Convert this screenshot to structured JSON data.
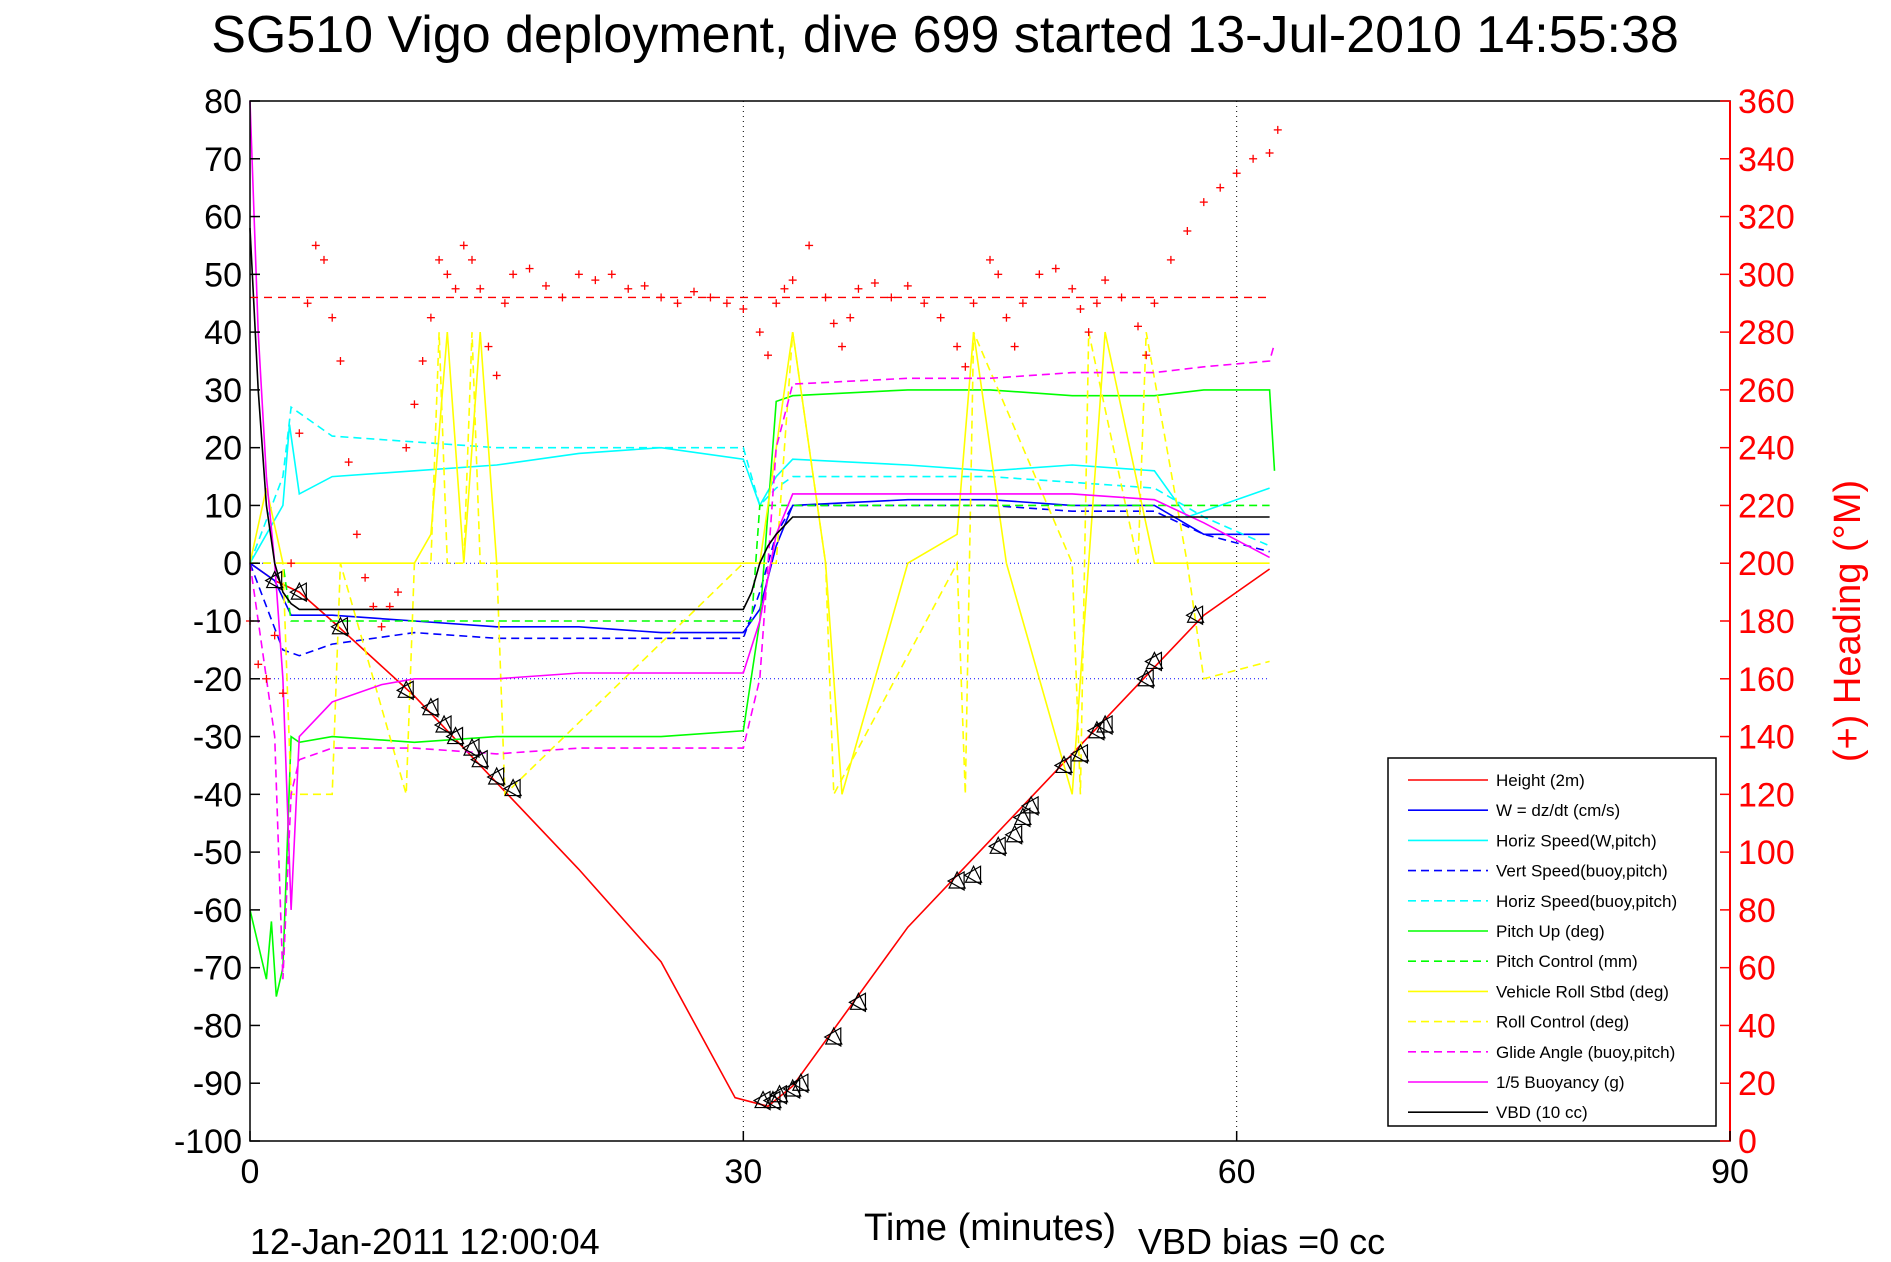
{
  "chart_data": {
    "type": "line",
    "title": "SG510 Vigo deployment, dive 699 started 13-Jul-2010 14:55:38",
    "xlabel": "Time (minutes)",
    "ylabel": "",
    "y2label": "(+) Heading (°M)",
    "xlim": [
      0,
      90
    ],
    "ylim": [
      -100,
      80
    ],
    "y2lim": [
      0,
      360
    ],
    "xticks": [
      "0",
      "30",
      "60",
      "90"
    ],
    "yticks": [
      "80",
      "70",
      "60",
      "50",
      "40",
      "30",
      "20",
      "10",
      "0",
      "-10",
      "-20",
      "-30",
      "-40",
      "-50",
      "-60",
      "-70",
      "-80",
      "-90",
      "-100"
    ],
    "y2ticks": [
      "360",
      "340",
      "320",
      "300",
      "280",
      "260",
      "240",
      "220",
      "200",
      "180",
      "160",
      "140",
      "120",
      "100",
      "80",
      "60",
      "40",
      "20",
      "0"
    ],
    "grid": true,
    "legend_position": "bottom-right",
    "footer_left": "12-Jan-2011 12:00:04",
    "footer_right": "VBD bias =0 cc",
    "colors": {
      "height": "#ff0000",
      "w": "#0000ff",
      "horiz_w": "#00ffff",
      "vert_buoy": "#0000ff",
      "horiz_buoy": "#00ffff",
      "pitch_up": "#00ff00",
      "pitch_control": "#00ff00",
      "roll": "#ffff00",
      "roll_control": "#ffff00",
      "glide": "#ff00ff",
      "buoyancy": "#ff00ff",
      "vbd": "#000000",
      "heading": "#ff0000"
    },
    "series": [
      {
        "name": "Height (2m)",
        "key": "height",
        "style": "solid",
        "x": [
          0,
          1.5,
          3,
          5,
          10,
          15,
          20,
          25,
          29.5,
          31.5,
          33,
          40,
          45,
          50,
          55,
          58,
          62
        ],
        "y": [
          0,
          -3,
          -5,
          -10,
          -23,
          -38,
          -53,
          -69,
          -92.5,
          -94,
          -90.5,
          -63,
          -48,
          -33,
          -18,
          -9,
          -1
        ]
      },
      {
        "name": "W = dz/dt (cm/s)",
        "key": "w",
        "style": "solid",
        "x": [
          0,
          1.5,
          2.5,
          5,
          10,
          15,
          20,
          25,
          30,
          31,
          32,
          33,
          40,
          45,
          50,
          55,
          58,
          62
        ],
        "y": [
          0,
          -3,
          -9,
          -9,
          -10,
          -11,
          -11,
          -12,
          -12,
          -8,
          3,
          10,
          11,
          11,
          10,
          10,
          5,
          5
        ]
      },
      {
        "name": "Horiz Speed(W,pitch)",
        "key": "horiz_w",
        "style": "solid",
        "x": [
          0,
          2,
          2.4,
          3,
          5,
          10,
          15,
          20,
          25,
          30,
          31,
          32,
          33,
          40,
          45,
          50,
          55,
          57,
          62
        ],
        "y": [
          0,
          10,
          24,
          12,
          15,
          16,
          17,
          19,
          20,
          18,
          10,
          15,
          18,
          17,
          16,
          17,
          16,
          8,
          13
        ]
      },
      {
        "name": "Vert Speed(buoy,pitch)",
        "key": "vert_buoy",
        "style": "dashed",
        "x": [
          0,
          2,
          3,
          5,
          10,
          15,
          20,
          25,
          30,
          31,
          32,
          33,
          40,
          45,
          50,
          55,
          58,
          62
        ],
        "y": [
          0,
          -15,
          -16,
          -14,
          -12,
          -13,
          -13,
          -13,
          -13,
          -5,
          5,
          10,
          10,
          10,
          9,
          9,
          5,
          2
        ]
      },
      {
        "name": "Horiz Speed(buoy,pitch)",
        "key": "horiz_buoy",
        "style": "dashed",
        "x": [
          0,
          2,
          2.5,
          5,
          10,
          15,
          20,
          25,
          30,
          31,
          32,
          33,
          40,
          45,
          50,
          55,
          58,
          62
        ],
        "y": [
          0,
          15,
          27,
          22,
          21,
          20,
          20,
          20,
          20,
          10,
          13,
          15,
          15,
          15,
          14,
          13,
          8,
          3
        ]
      },
      {
        "name": "Pitch Up (deg)",
        "key": "pitch_up",
        "style": "solid",
        "x": [
          0,
          1,
          1.3,
          1.6,
          2,
          2.5,
          3,
          5,
          10,
          15,
          20,
          25,
          30,
          31,
          32,
          33,
          40,
          45,
          50,
          55,
          58,
          62,
          62.3
        ],
        "y": [
          -60,
          -72,
          -62,
          -75,
          -70,
          -30,
          -31,
          -30,
          -31,
          -30,
          -30,
          -30,
          -29,
          -10,
          28,
          29,
          30,
          30,
          29,
          29,
          30,
          30,
          16
        ]
      },
      {
        "name": "Pitch Control (mm)",
        "key": "pitch_control",
        "style": "dashed",
        "x": [
          0,
          2,
          2.5,
          30,
          30.5,
          31,
          62
        ],
        "y": [
          0,
          0,
          -10,
          -10,
          -10,
          10,
          10
        ]
      },
      {
        "name": "Vehicle Roll Stbd (deg)",
        "key": "roll",
        "style": "solid",
        "x": [
          0,
          1,
          2,
          3,
          10,
          11,
          12,
          13,
          14,
          15,
          16,
          30,
          31,
          33,
          35,
          36,
          40,
          43,
          44,
          46,
          50,
          52,
          55,
          58,
          60,
          62
        ],
        "y": [
          0,
          13,
          0,
          0,
          0,
          5,
          40,
          0,
          40,
          0,
          0,
          0,
          0,
          40,
          0,
          -40,
          0,
          5,
          40,
          0,
          -40,
          40,
          0,
          0,
          0,
          0
        ]
      },
      {
        "name": "Roll Control (deg)",
        "key": "roll_control",
        "style": "dashed",
        "x": [
          0,
          2,
          2.5,
          5,
          5.5,
          9.5,
          10,
          11,
          11.5,
          12,
          13,
          13.5,
          14,
          15,
          15.5,
          30,
          32,
          33,
          35,
          35.5,
          43,
          43.5,
          44,
          50,
          50.5,
          51,
          54,
          54.5,
          57,
          58,
          62
        ],
        "y": [
          0,
          0,
          -40,
          -40,
          0,
          -40,
          0,
          0,
          40,
          0,
          0,
          40,
          0,
          0,
          -40,
          0,
          0,
          40,
          0,
          -40,
          0,
          -40,
          40,
          0,
          -40,
          40,
          0,
          40,
          0,
          -20,
          -17
        ]
      },
      {
        "name": "Glide Angle (buoy,pitch)",
        "key": "glide",
        "style": "dashed",
        "x": [
          0,
          1.5,
          2,
          2.5,
          3,
          5,
          10,
          15,
          20,
          25,
          30,
          31,
          32,
          33,
          40,
          45,
          50,
          55,
          58,
          62,
          62.3
        ],
        "y": [
          0,
          -30,
          -72,
          -40,
          -34,
          -32,
          -32,
          -33,
          -32,
          -32,
          -32,
          -20,
          20,
          31,
          32,
          32,
          33,
          33,
          34,
          35,
          38
        ]
      },
      {
        "name": "1/5 Buoyancy (g)",
        "key": "buoyancy",
        "style": "solid",
        "x": [
          0,
          0.5,
          1,
          1.5,
          2,
          2.5,
          3,
          5,
          8,
          10,
          12,
          15,
          20,
          25,
          30,
          31,
          32,
          33,
          40,
          45,
          50,
          55,
          58,
          62
        ],
        "y": [
          80,
          40,
          15,
          0,
          -20,
          -60,
          -30,
          -24,
          -21,
          -20,
          -20,
          -20,
          -19,
          -19,
          -19,
          -10,
          5,
          12,
          12,
          12,
          12,
          11,
          7,
          1
        ]
      },
      {
        "name": "VBD (10 cc)",
        "key": "vbd",
        "style": "solid",
        "x": [
          0,
          0.5,
          1,
          1.5,
          2,
          2.5,
          3,
          5,
          10,
          15,
          20,
          25,
          30,
          30.5,
          31,
          31.5,
          32,
          33,
          40,
          45,
          50,
          55,
          58,
          62
        ],
        "y": [
          58,
          30,
          10,
          0,
          -5,
          -7,
          -8,
          -8,
          -8,
          -8,
          -8,
          -8,
          -8,
          -5,
          0,
          3,
          5,
          8,
          8,
          8,
          8,
          8,
          8,
          8
        ]
      }
    ],
    "heading": {
      "name": "(+) Heading",
      "target_deg": 292,
      "x": [
        0,
        0.5,
        1,
        1.5,
        2,
        2.5,
        3,
        3.5,
        4,
        4.5,
        5,
        5.5,
        6,
        6.5,
        7,
        7.5,
        8,
        8.5,
        9,
        9.5,
        10,
        10.5,
        11,
        11.5,
        12,
        12.5,
        13,
        13.5,
        14,
        14.5,
        15,
        15.5,
        16,
        17,
        18,
        19,
        20,
        21,
        22,
        23,
        24,
        25,
        26,
        27,
        28,
        29,
        30,
        31,
        31.5,
        32,
        32.5,
        33,
        34,
        35,
        35.5,
        36,
        36.5,
        37,
        38,
        39,
        40,
        41,
        42,
        43,
        43.5,
        44,
        45,
        45.5,
        46,
        46.5,
        47,
        48,
        49,
        50,
        50.5,
        51,
        51.5,
        52,
        53,
        54,
        54.5,
        55,
        56,
        57,
        58,
        59,
        60,
        61,
        62,
        62.5
      ],
      "y": [
        180,
        165,
        160,
        175,
        155,
        200,
        245,
        290,
        310,
        305,
        285,
        270,
        235,
        210,
        195,
        185,
        178,
        185,
        190,
        240,
        255,
        270,
        285,
        305,
        300,
        295,
        310,
        305,
        295,
        275,
        265,
        290,
        300,
        302,
        296,
        292,
        300,
        298,
        300,
        295,
        296,
        292,
        290,
        294,
        292,
        290,
        288,
        280,
        272,
        290,
        295,
        298,
        310,
        292,
        283,
        275,
        285,
        295,
        297,
        292,
        296,
        290,
        285,
        275,
        268,
        290,
        305,
        300,
        285,
        275,
        290,
        300,
        302,
        295,
        288,
        280,
        290,
        298,
        292,
        282,
        272,
        290,
        305,
        315,
        325,
        330,
        335,
        340,
        342,
        350
      ]
    },
    "markers": {
      "x": [
        1.5,
        3,
        5.5,
        9.5,
        11,
        11.8,
        12.5,
        13.5,
        14,
        15,
        16,
        31.2,
        31.8,
        32.2,
        33,
        33.5,
        35.5,
        37,
        43,
        44,
        45.5,
        46.5,
        47,
        47.5,
        49.5,
        50.5,
        51.5,
        52,
        54.5,
        55,
        57.5
      ],
      "y": [
        -3,
        -5,
        -11,
        -22,
        -25,
        -28,
        -30,
        -32,
        -34,
        -37,
        -39,
        -93,
        -93,
        -92,
        -91,
        -90,
        -82,
        -76,
        -55,
        -54,
        -49,
        -47,
        -44,
        -42,
        -35,
        -33,
        -29,
        -28,
        -20,
        -17,
        -9
      ]
    }
  }
}
